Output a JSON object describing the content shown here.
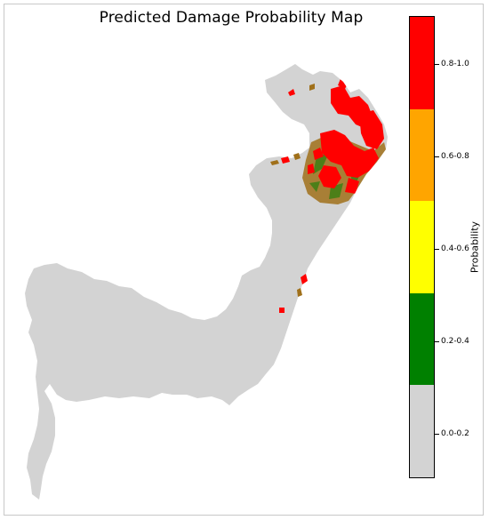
{
  "title": "Predicted Damage Probability Map",
  "legend": {
    "label": "Probability",
    "classes": [
      {
        "label": "0.8-1.0",
        "color": "#ff0000"
      },
      {
        "label": "0.6-0.8",
        "color": "#ffa500"
      },
      {
        "label": "0.4-0.6",
        "color": "#ffff00"
      },
      {
        "label": "0.2-0.4",
        "color": "#008000"
      },
      {
        "label": "0.0-0.2",
        "color": "#d3d3d3"
      }
    ]
  },
  "colors": {
    "land": "#d3d3d3",
    "high_damage": "#ff0000",
    "moderate_damage": "#a0701a",
    "low_damage": "#008000"
  }
}
